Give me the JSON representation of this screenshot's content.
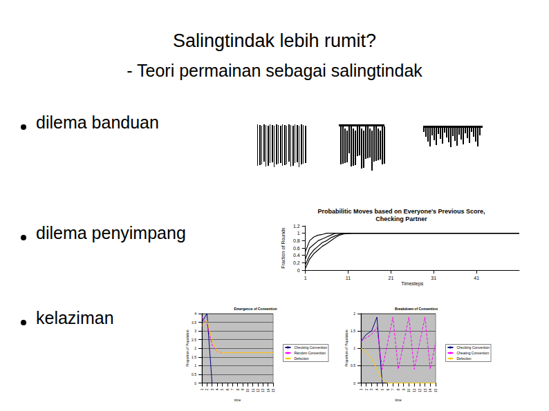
{
  "title": "Salingtindak lebih rumit?",
  "subtitle": "- Teori permainan sebagai salingtindak",
  "bullets": [
    "dilema banduan",
    "dilema penyimpang",
    "kelaziman"
  ],
  "chart_data": [
    {
      "type": "line",
      "title": "Probabilitic Moves based on Everyone's Previous Score,\nChecking Partner",
      "x_label": "Timesteps",
      "y_label": "Fraction of Rounds",
      "x": [
        1,
        2,
        3,
        4,
        5,
        6,
        7,
        8,
        9,
        10,
        12,
        51
      ],
      "series": [
        {
          "color": "#000000",
          "values": [
            0.5,
            0.8,
            0.9,
            0.95,
            0.97,
            1,
            1,
            1,
            1,
            1,
            1,
            1
          ]
        },
        {
          "color": "#000000",
          "values": [
            0.3,
            0.6,
            0.7,
            0.8,
            0.85,
            0.9,
            0.95,
            1,
            1,
            1,
            1,
            1
          ]
        },
        {
          "color": "#000000",
          "values": [
            0.15,
            0.4,
            0.55,
            0.65,
            0.75,
            0.8,
            0.88,
            0.93,
            0.97,
            1,
            1,
            1
          ]
        },
        {
          "color": "#000000",
          "values": [
            0.05,
            0.3,
            0.45,
            0.55,
            0.65,
            0.72,
            0.8,
            0.88,
            0.95,
            0.98,
            1,
            1
          ]
        }
      ],
      "xlim": [
        1,
        51
      ],
      "xticks": [
        1,
        11,
        21,
        31,
        41
      ],
      "ylim": [
        0,
        1.2
      ],
      "yticks": [
        0,
        0.2,
        0.4,
        0.6,
        0.8,
        1,
        1.2
      ],
      "grid": false
    },
    {
      "type": "line",
      "title": "Emergence of Convention",
      "x_label": "time",
      "y_label": "Proportion of Population",
      "categories": [
        "1",
        "2",
        "3",
        "4",
        "5",
        "6",
        "7",
        "8",
        "9",
        "10",
        "11",
        "12",
        "13",
        "14",
        "15"
      ],
      "series": [
        {
          "name": "Checking Convention",
          "color": "#000080",
          "values": [
            3.5,
            4.0,
            0,
            null,
            null,
            null,
            null,
            null,
            null,
            null,
            null,
            null,
            null,
            null,
            null
          ]
        },
        {
          "name": "Random Convention",
          "color": "#ff00ff",
          "line_style": "dashed",
          "values": [
            3.8,
            3.4,
            2.2,
            1.8,
            1.75,
            1.75,
            1.75,
            1.75,
            1.75,
            1.75,
            1.75,
            1.75,
            1.75,
            1.75,
            1.75
          ]
        },
        {
          "name": "Defection",
          "color": "#ffcc00",
          "values": [
            3.3,
            3.6,
            2.5,
            1.8,
            1.75,
            1.75,
            1.75,
            1.75,
            1.75,
            1.75,
            1.75,
            1.75,
            1.75,
            1.75,
            1.75
          ]
        }
      ],
      "ylim": [
        0,
        4
      ],
      "yticks": [
        0,
        0.5,
        1,
        1.5,
        2,
        2.5,
        3,
        3.5,
        4
      ],
      "grid": true,
      "legend": "right"
    },
    {
      "type": "line",
      "title": "Breakdown of Convention",
      "x_label": "time",
      "y_label": "Proportion of Population",
      "categories": [
        "1",
        "2",
        "3",
        "4",
        "5",
        "6",
        "7",
        "8",
        "9",
        "10",
        "11",
        "12",
        "13",
        "14",
        "15"
      ],
      "series": [
        {
          "name": "Checking Convention",
          "color": "#000080",
          "values": [
            1.2,
            1.4,
            1.5,
            1.9,
            0,
            null,
            null,
            null,
            null,
            null,
            null,
            null,
            null,
            null,
            null
          ]
        },
        {
          "name": "Cheating Convention",
          "color": "#ff00ff",
          "line_style": "dashed",
          "values": [
            1.2,
            1.3,
            1.4,
            1.6,
            0.4,
            1.15,
            1.9,
            0.4,
            1.15,
            1.9,
            0.4,
            1.15,
            1.9,
            0.4,
            1.15
          ]
        },
        {
          "name": "Defection",
          "color": "#ffcc00",
          "values": [
            1.0,
            0.9,
            0.7,
            0.4,
            0.1,
            0,
            0,
            0,
            0,
            0,
            0,
            0,
            0,
            0,
            0
          ]
        }
      ],
      "ylim": [
        0,
        2
      ],
      "yticks": [
        0,
        0.5,
        1,
        1.5,
        2
      ],
      "grid": true,
      "legend": "right"
    }
  ]
}
